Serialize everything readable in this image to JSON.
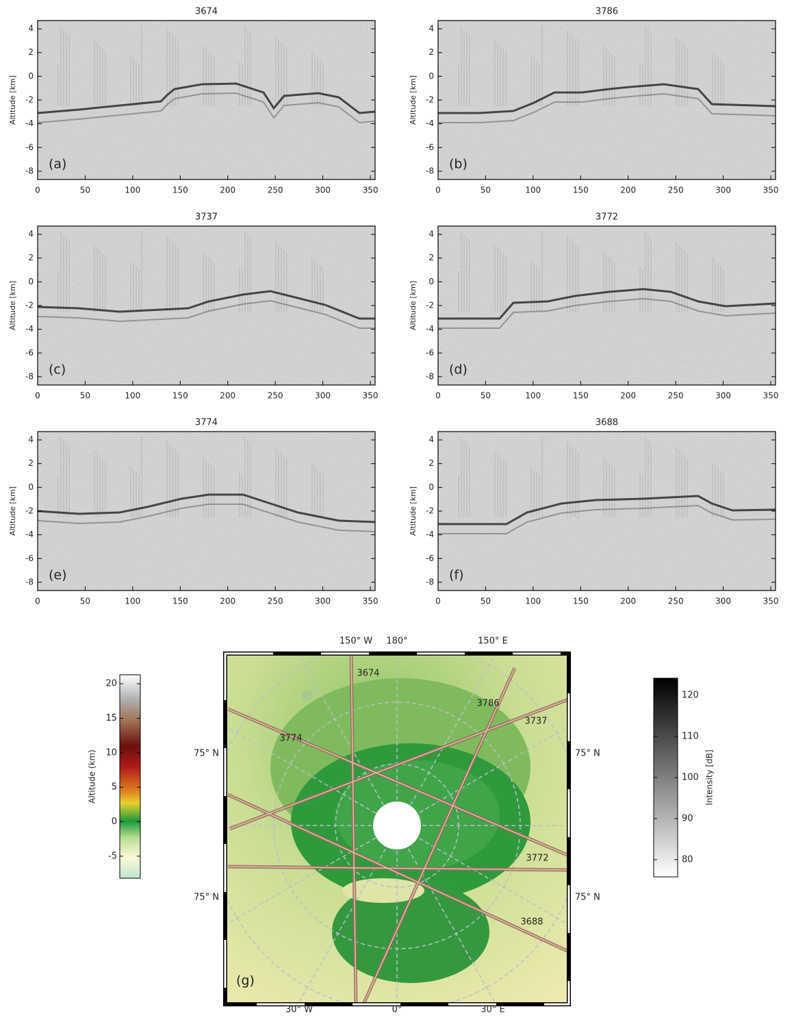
{
  "panels": [
    {
      "title": "3674",
      "label": "(a)"
    },
    {
      "title": "3786",
      "label": "(b)"
    },
    {
      "title": "3737",
      "label": "(c)"
    },
    {
      "title": "3772",
      "label": "(d)"
    },
    {
      "title": "3774",
      "label": "(e)"
    },
    {
      "title": "3688",
      "label": "(f)"
    }
  ],
  "radargram_axes": {
    "y_label": "Altitude [km]",
    "xlim": [
      0,
      355
    ],
    "ylim": [
      -8.7,
      4.7
    ],
    "xticks": [
      0,
      50,
      100,
      150,
      200,
      250,
      300,
      350
    ],
    "yticks": [
      -8,
      -6,
      -4,
      -2,
      0,
      2,
      4
    ]
  },
  "map": {
    "label": "(g)",
    "top_labels": [
      "150° W",
      "180°",
      "150° E"
    ],
    "bottom_labels": [
      "30° W",
      "0°",
      "30° E"
    ],
    "left_labels": [
      "75° N",
      "75° N"
    ],
    "right_labels": [
      "75° N",
      "75° N"
    ],
    "tracks": [
      "3674",
      "3786",
      "3737",
      "3774",
      "3772",
      "3688"
    ]
  },
  "altitude_colorbar": {
    "label": "Altitude (km)",
    "lim": [
      -8.2,
      21.3
    ],
    "ticks": [
      -5,
      0,
      5,
      10,
      15,
      20
    ]
  },
  "intensity_colorbar": {
    "label": "Intensity [dB]",
    "lim": [
      75.8,
      124.2
    ],
    "ticks": [
      80,
      90,
      100,
      110,
      120
    ]
  }
}
